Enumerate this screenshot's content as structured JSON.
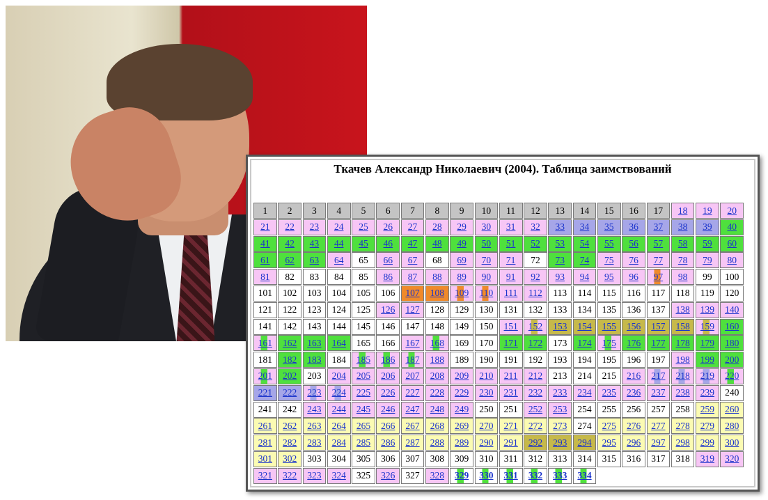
{
  "photo": {
    "subject": "man-facepalm-photo"
  },
  "table": {
    "title": "Ткачев Александр Николаевич (2004). Таблица заимствований",
    "colors": {
      "gray": "#c4c4c4",
      "pink": "#f7c6f5",
      "white": "#ffffff",
      "green": "#4fe03d",
      "yellow": "#fbfbb3",
      "blue": "#a6a6e8",
      "olive": "#c6b94a",
      "orange": "#f08a2a",
      "link": "#1a33cc"
    }
  }
}
